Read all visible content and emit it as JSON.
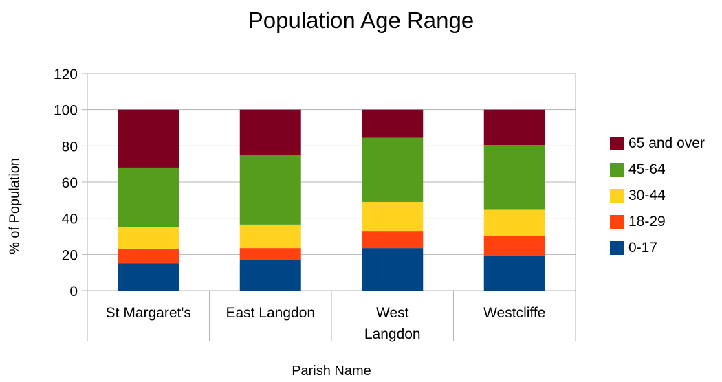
{
  "chart_data": {
    "type": "bar",
    "stacked": true,
    "title": "Population Age Range",
    "xlabel": "Parish Name",
    "ylabel": "% of Population",
    "ylim": [
      0,
      120
    ],
    "ytick_step": 20,
    "grid": true,
    "legend_position": "right",
    "categories": [
      "St Margaret's",
      "East Langdon",
      "West Langdon",
      "Westcliffe"
    ],
    "category_lines": [
      [
        "St Margaret's"
      ],
      [
        "East Langdon"
      ],
      [
        "West",
        "Langdon"
      ],
      [
        "Westcliffe"
      ]
    ],
    "series": [
      {
        "name": "0-17",
        "color": "#004586",
        "values": [
          15,
          17,
          23.5,
          19.5
        ]
      },
      {
        "name": "18-29",
        "color": "#ff420e",
        "values": [
          8,
          6.5,
          9.5,
          10.5
        ]
      },
      {
        "name": "30-44",
        "color": "#ffd320",
        "values": [
          12,
          13,
          16,
          15
        ]
      },
      {
        "name": "45-64",
        "color": "#579d1c",
        "values": [
          33,
          38.5,
          35.5,
          35.5
        ]
      },
      {
        "name": "65 and over",
        "color": "#7e0021",
        "values": [
          32,
          25,
          15.5,
          19.5
        ]
      }
    ]
  }
}
